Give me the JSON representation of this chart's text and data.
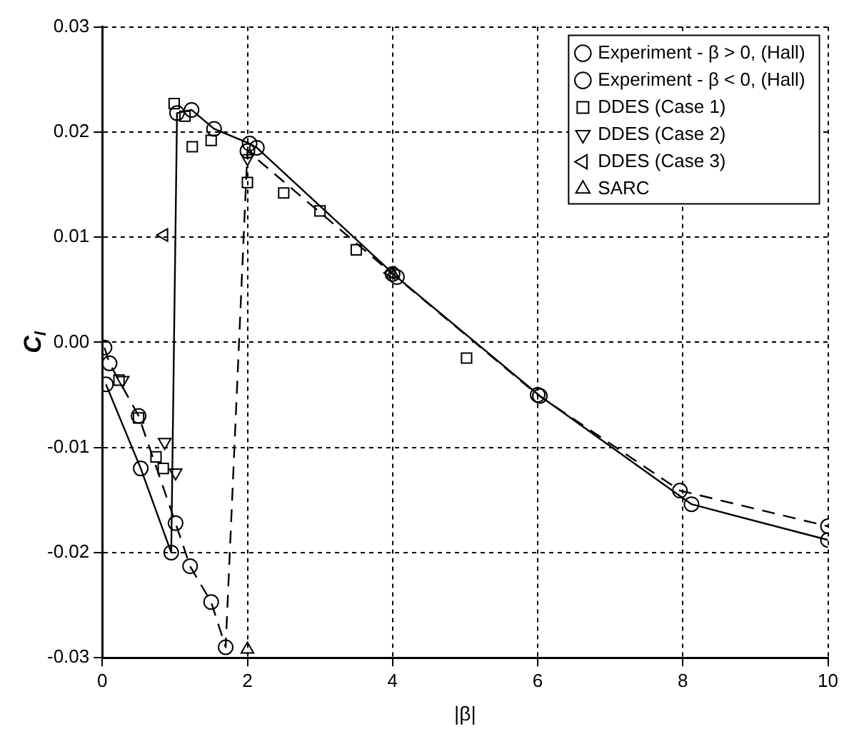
{
  "chart_data": {
    "type": "line",
    "xlabel": "|β|",
    "ylabel": "C$_{l}$",
    "xlim": [
      0,
      10
    ],
    "xticks": [
      0,
      2,
      4,
      6,
      8,
      10
    ],
    "ylim": [
      -0.03,
      0.03
    ],
    "yticks": [
      {
        "value": -0.03,
        "label": "-0.03"
      },
      {
        "value": -0.02,
        "label": "-0.02"
      },
      {
        "value": -0.01,
        "label": "-0.01"
      },
      {
        "value": 0,
        "label": "0.00"
      },
      {
        "value": 0.01,
        "label": "0.01"
      },
      {
        "value": 0.02,
        "label": "0.02"
      },
      {
        "value": 0.03,
        "label": "0.03"
      }
    ],
    "grid": true,
    "legend": "top right",
    "series": [
      {
        "name": "Experiment - β > 0, (Hall)",
        "color": "#000000",
        "marker": "circle",
        "line_style": "solid",
        "x": [
          0.05,
          0.53,
          0.95,
          1.03,
          1.23,
          1.54,
          2.03,
          2.13,
          4.06,
          6.03,
          8.12,
          10
        ],
        "values": [
          -0.004,
          -0.012,
          -0.02,
          0.0218,
          0.0221,
          0.0203,
          0.0189,
          0.0185,
          0.0062,
          -0.0051,
          -0.0154,
          -0.0188
        ]
      },
      {
        "name": "Experiment - β < 0, (Hall)",
        "color": "#000000",
        "marker": "circle",
        "line_style": "dashed",
        "x": [
          0.03,
          0.1,
          0.5,
          1.01,
          1.21,
          1.5,
          1.7,
          2.0,
          4.0,
          6.0,
          7.96,
          10
        ],
        "values": [
          -0.0005,
          -0.002,
          -0.007,
          -0.0172,
          -0.0213,
          -0.0247,
          -0.029,
          0.0182,
          0.0065,
          -0.005,
          -0.0141,
          -0.0175
        ]
      },
      {
        "name": "DDES (Case 1)",
        "type": "scatter",
        "color": "#000000",
        "marker": "square",
        "x": [
          0.23,
          0.5,
          0.74,
          0.84,
          0.99,
          1.14,
          1.24,
          1.5,
          2.0,
          2.5,
          3.0,
          3.5,
          5.02
        ],
        "values": [
          -0.0036,
          -0.0072,
          -0.0109,
          -0.012,
          0.0227,
          0.0215,
          0.0186,
          0.0192,
          0.0152,
          0.0142,
          0.0125,
          0.0088,
          -0.0015
        ]
      },
      {
        "name": "DDES (Case 2)",
        "type": "scatter",
        "color": "#000000",
        "marker": "triangle-down",
        "x": [
          0.28,
          0.86,
          1.01,
          2.0
        ],
        "values": [
          -0.0036,
          -0.0095,
          -0.0124,
          0.0175
        ]
      },
      {
        "name": "DDES (Case 3)",
        "type": "scatter",
        "color": "#000000",
        "marker": "triangle-left",
        "x": [
          0.85,
          3.98
        ],
        "values": [
          0.0102,
          0.0066
        ]
      },
      {
        "name": "SARC",
        "type": "scatter",
        "color": "#000000",
        "marker": "triangle",
        "x": [
          2.0,
          4.0
        ],
        "values": [
          -0.0292,
          0.0065
        ]
      }
    ]
  }
}
